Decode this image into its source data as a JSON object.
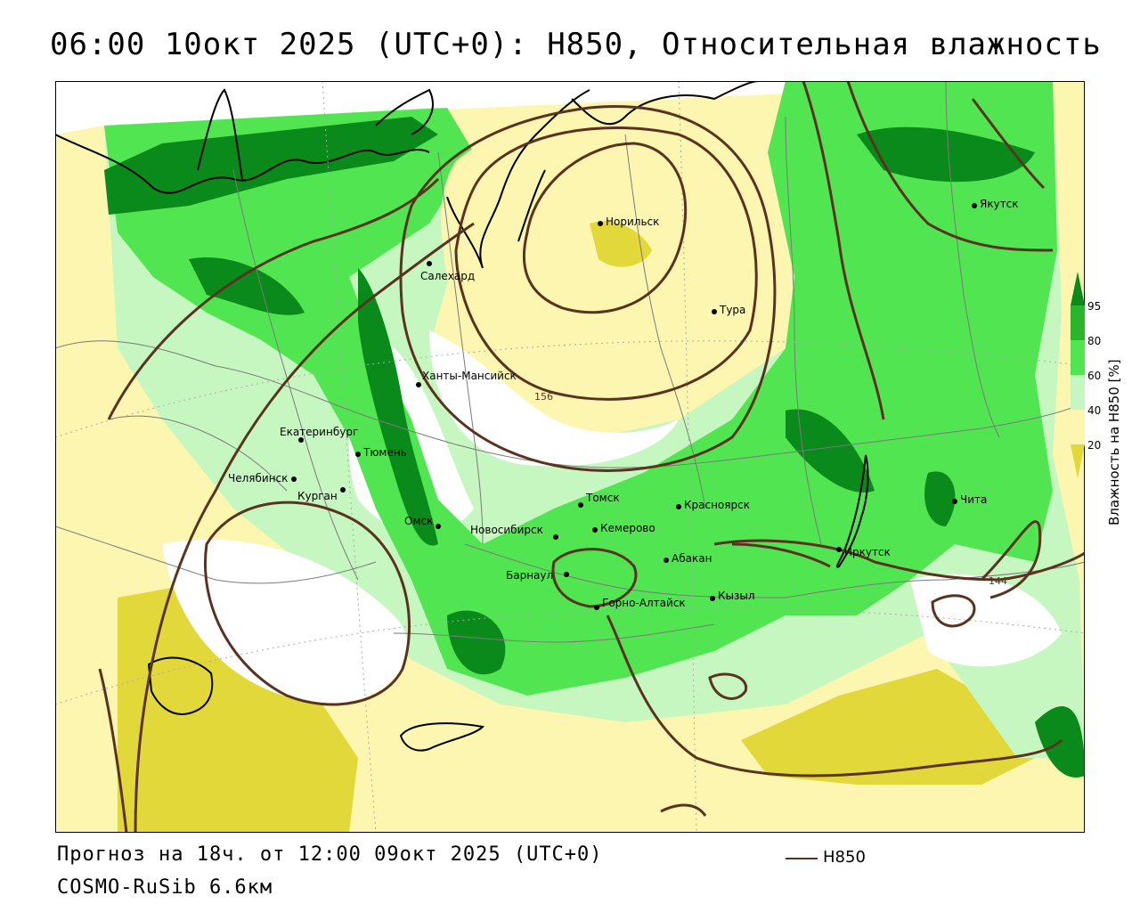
{
  "title": "06:00 10окт 2025 (UTC+0): H850, Относительная влажность",
  "footer": {
    "forecast": "Прогноз на 18ч. от 12:00 09окт 2025 (UTC+0)",
    "model": "COSMO-RuSib 6.6км"
  },
  "legend": {
    "contour_label": "H850",
    "contour_color": "#5a3320"
  },
  "colorbar": {
    "title": "Влажность на H850 [%]",
    "ticks": [
      "95",
      "80",
      "60",
      "40",
      "20"
    ],
    "colors": [
      "#0a8a1a",
      "#2ab52a",
      "#52e552",
      "#c6f7c0",
      "#ffffff",
      "#fdf6b0",
      "#e2d83a"
    ]
  },
  "cities": [
    {
      "name": "Норильск"
    },
    {
      "name": "Якутск"
    },
    {
      "name": "Салехард"
    },
    {
      "name": "Тура"
    },
    {
      "name": "Ханты-Мансийск"
    },
    {
      "name": "Екатеринбург"
    },
    {
      "name": "Тюмень"
    },
    {
      "name": "Челябинск"
    },
    {
      "name": "Курган"
    },
    {
      "name": "Омск"
    },
    {
      "name": "Томск"
    },
    {
      "name": "Красноярск"
    },
    {
      "name": "Новосибирск"
    },
    {
      "name": "Кемерово"
    },
    {
      "name": "Абакан"
    },
    {
      "name": "Барнаул"
    },
    {
      "name": "Горно-Алтайск"
    },
    {
      "name": "Кызыл"
    },
    {
      "name": "Иркутск"
    },
    {
      "name": "Чита"
    }
  ],
  "contour_labels": [
    "156",
    "144"
  ]
}
